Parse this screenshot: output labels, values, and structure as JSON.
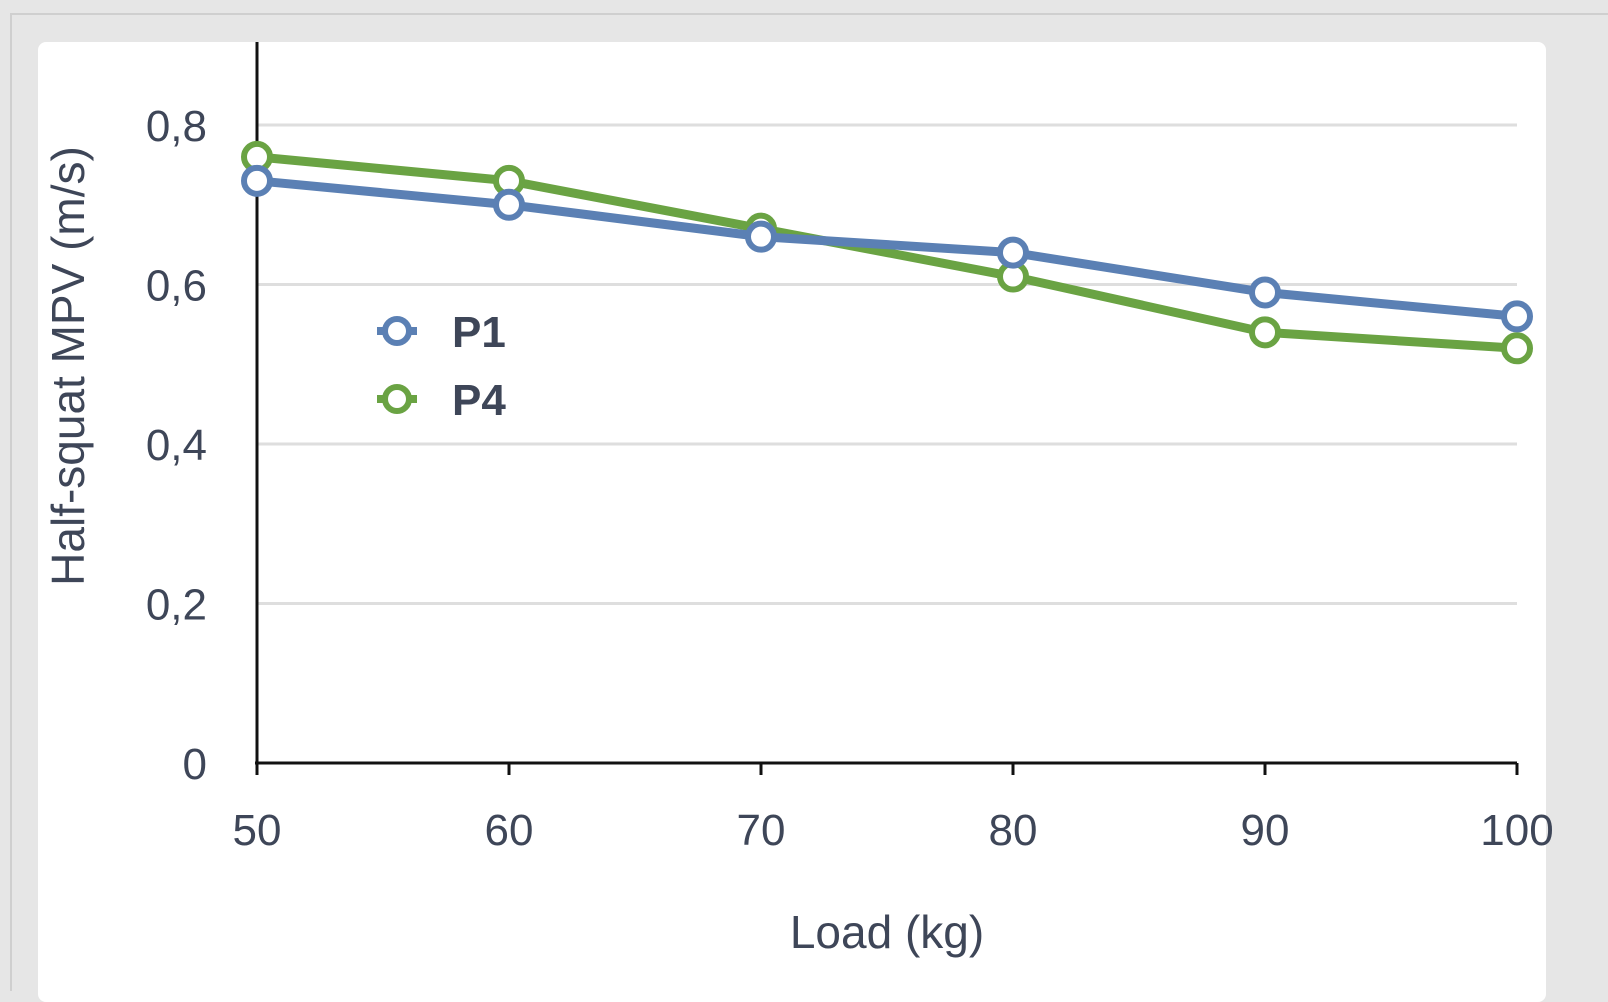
{
  "chart_data": {
    "type": "line",
    "xlabel": "Load (kg)",
    "ylabel": "Half-squat MPV (m/s)",
    "x": [
      50,
      60,
      70,
      80,
      90,
      100
    ],
    "xlim": [
      50,
      100
    ],
    "ylim": [
      0,
      0.8
    ],
    "x_ticks": [
      "50",
      "60",
      "70",
      "80",
      "90",
      "100"
    ],
    "y_ticks": [
      {
        "value": 0,
        "label": "0"
      },
      {
        "value": 0.2,
        "label": "0,2"
      },
      {
        "value": 0.4,
        "label": "0,4"
      },
      {
        "value": 0.6,
        "label": "0,6"
      },
      {
        "value": 0.8,
        "label": "0,8"
      }
    ],
    "grid": true,
    "legend_position": "left, inside plot area",
    "series": [
      {
        "name": "P1",
        "color": "#5b80b4",
        "values": [
          0.73,
          0.7,
          0.66,
          0.64,
          0.59,
          0.56
        ]
      },
      {
        "name": "P4",
        "color": "#6aa343",
        "values": [
          0.76,
          0.73,
          0.67,
          0.61,
          0.54,
          0.52
        ]
      }
    ]
  }
}
